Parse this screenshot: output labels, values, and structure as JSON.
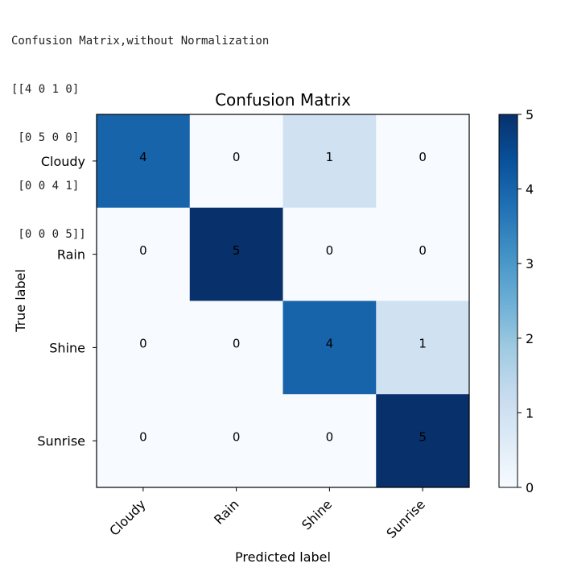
{
  "output": {
    "header": "Confusion Matrix,without Normalization",
    "matrix_lines": [
      "[[4 0 1 0]",
      " [0 5 0 0]",
      " [0 0 4 1]",
      " [0 0 0 5]]"
    ]
  },
  "chart_data": {
    "type": "heatmap",
    "title": "Confusion Matrix",
    "xlabel": "Predicted label",
    "ylabel": "True label",
    "x_categories": [
      "Cloudy",
      "Rain",
      "Shine",
      "Sunrise"
    ],
    "y_categories": [
      "Cloudy",
      "Rain",
      "Shine",
      "Sunrise"
    ],
    "values": [
      [
        4,
        0,
        1,
        0
      ],
      [
        0,
        5,
        0,
        0
      ],
      [
        0,
        0,
        4,
        1
      ],
      [
        0,
        0,
        0,
        5
      ]
    ],
    "colormap": "Blues",
    "vmin": 0,
    "vmax": 5,
    "colorbar_ticks": [
      0,
      1,
      2,
      3,
      4,
      5
    ],
    "colors": {
      "text_on_light": "#000000",
      "text_on_dark": "#ffffff",
      "frame": "#000000"
    }
  }
}
